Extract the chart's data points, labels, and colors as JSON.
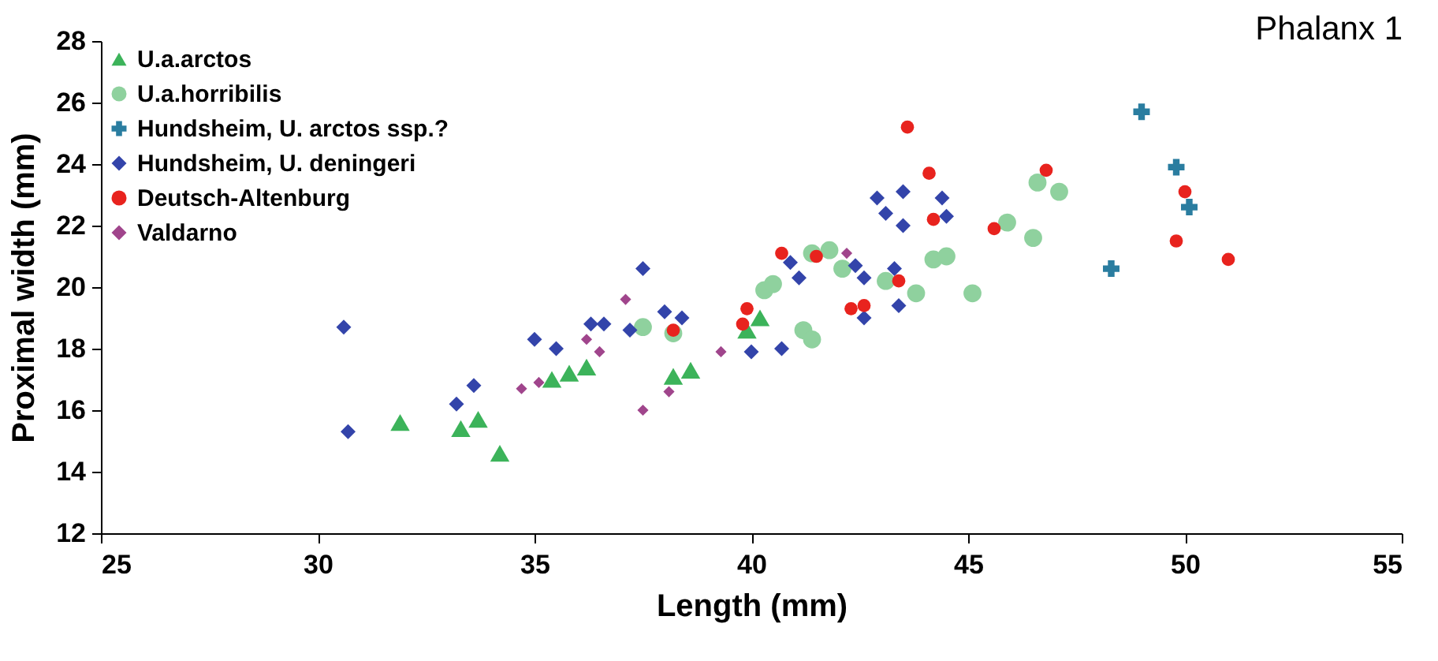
{
  "chart_data": {
    "type": "scatter",
    "title": "Phalanx 1",
    "xlabel": "Length (mm)",
    "ylabel": "Proximal width (mm)",
    "xlim": [
      25,
      55
    ],
    "ylim": [
      12,
      28
    ],
    "xticks": [
      25,
      30,
      35,
      40,
      45,
      50,
      55
    ],
    "yticks": [
      12,
      14,
      16,
      18,
      20,
      22,
      24,
      26,
      28
    ],
    "grid": false,
    "legend": "top left",
    "series": [
      {
        "name": "U.a.arctos",
        "color": "#3cb35a",
        "marker": "triangle",
        "x": [
          31.9,
          33.3,
          33.7,
          34.2,
          35.4,
          35.8,
          36.2,
          38.2,
          38.6,
          39.9,
          40.2
        ],
        "values": [
          15.6,
          15.4,
          15.7,
          14.6,
          17.0,
          17.2,
          17.4,
          17.1,
          17.3,
          18.6,
          19.0
        ]
      },
      {
        "name": "U.a.horribilis",
        "color": "#8fd19e",
        "marker": "circle",
        "x": [
          37.5,
          38.2,
          40.3,
          40.5,
          41.2,
          41.4,
          41.4,
          41.8,
          42.1,
          43.1,
          43.8,
          44.2,
          44.5,
          45.1,
          45.9,
          46.5,
          46.6,
          47.1
        ],
        "values": [
          18.7,
          18.5,
          19.9,
          20.1,
          18.6,
          18.3,
          21.1,
          21.2,
          20.6,
          20.2,
          19.8,
          20.9,
          21.0,
          19.8,
          22.1,
          21.6,
          23.4,
          23.1
        ]
      },
      {
        "name": "Hundsheim, U. arctos ssp.?",
        "color": "#2a7da0",
        "marker": "cross",
        "x": [
          49.0,
          49.8,
          50.1,
          48.3
        ],
        "values": [
          25.7,
          23.9,
          22.6,
          20.6
        ]
      },
      {
        "name": "Hundsheim, U. deningeri",
        "color": "#3344aa",
        "marker": "diamond",
        "x": [
          30.6,
          30.7,
          33.6,
          33.2,
          35.0,
          35.5,
          36.3,
          36.6,
          37.2,
          37.5,
          38.0,
          38.4,
          40.0,
          40.7,
          40.9,
          41.1,
          42.4,
          42.6,
          42.6,
          43.3,
          43.4,
          42.9,
          43.5,
          43.1,
          43.5,
          44.4,
          44.5
        ],
        "values": [
          18.7,
          15.3,
          16.8,
          16.2,
          18.3,
          18.0,
          18.8,
          18.8,
          18.6,
          20.6,
          19.2,
          19.0,
          17.9,
          18.0,
          20.8,
          20.3,
          20.7,
          20.3,
          19.0,
          20.6,
          19.4,
          22.9,
          23.1,
          22.4,
          22.0,
          22.9,
          22.3
        ]
      },
      {
        "name": "Deutsch-Altenburg",
        "color": "#e8231e",
        "marker": "circle",
        "x": [
          43.6,
          44.1,
          44.2,
          40.7,
          41.5,
          43.4,
          42.3,
          42.6,
          39.9,
          39.8,
          38.2,
          46.8,
          45.6,
          50.0,
          49.8,
          51.0
        ],
        "values": [
          25.2,
          23.7,
          22.2,
          21.1,
          21.0,
          20.2,
          19.3,
          19.4,
          19.3,
          18.8,
          18.6,
          23.8,
          21.9,
          23.1,
          21.5,
          20.9
        ]
      },
      {
        "name": "Valdarno",
        "color": "#a0458c",
        "marker": "diamond",
        "x": [
          34.7,
          35.1,
          36.2,
          36.5,
          37.1,
          37.5,
          38.1,
          39.3,
          42.2
        ],
        "values": [
          16.7,
          16.9,
          18.3,
          17.9,
          19.6,
          16.0,
          16.6,
          17.9,
          21.1
        ]
      }
    ]
  }
}
